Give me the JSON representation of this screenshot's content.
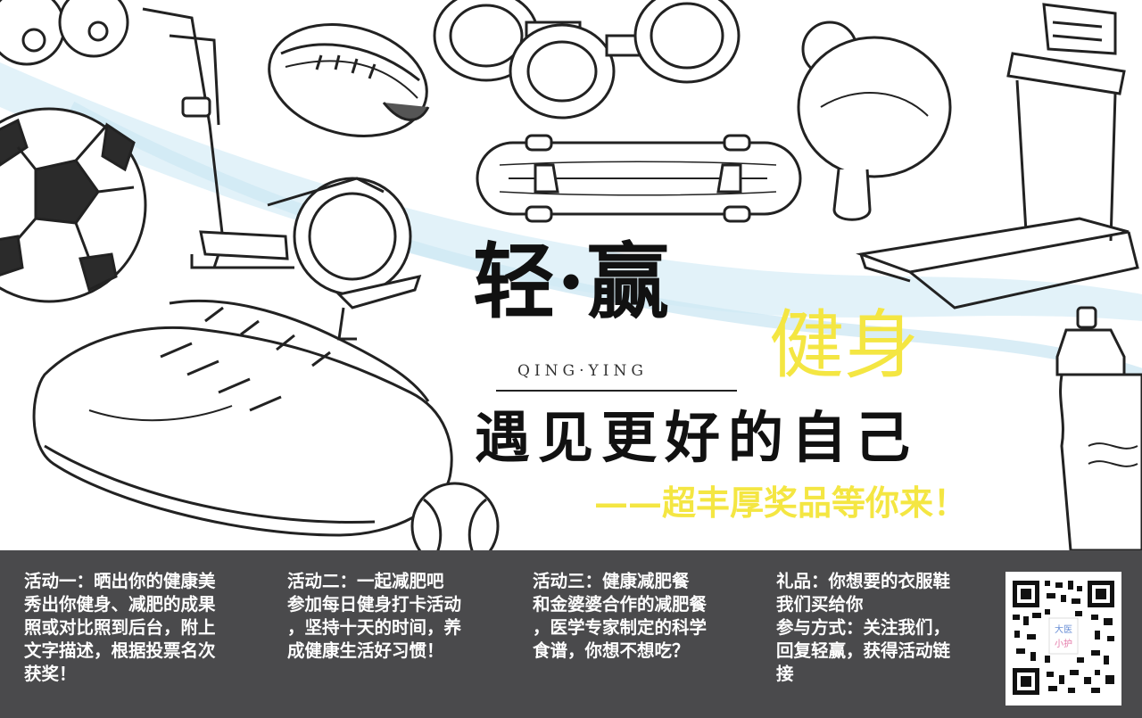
{
  "hero": {
    "title_main": "轻·赢",
    "title_pinyin": "QING·YING",
    "title_fitness": "健身",
    "title_meet": "遇见更好的自己",
    "title_prize": "——超丰厚奖品等你来！",
    "accent_color": "#f4e642"
  },
  "panel": {
    "background": "#4a4a4c",
    "activities": [
      {
        "lines": [
          "活动一：晒出你的健康美",
          "秀出你健身、减肥的成果",
          "照或对比照到后台，附上",
          "文字描述，根据投票名次",
          "获奖！"
        ]
      },
      {
        "lines": [
          "活动二：一起减肥吧",
          "参加每日健身打卡活动",
          "，坚持十天的时间，养",
          "成健康生活好习惯！"
        ]
      },
      {
        "lines": [
          "活动三：健康减肥餐",
          "和金婆婆合作的减肥餐",
          "，医学专家制定的科学",
          "食谱，你想不想吃？"
        ]
      },
      {
        "lines": [
          "礼品：你想要的衣服鞋",
          "我们买给你",
          "参与方式：关注我们，",
          "回复轻赢，获得活动链",
          "接"
        ]
      }
    ]
  },
  "qr": {
    "logo_text_1": "大医",
    "logo_text_2": "小护"
  },
  "icons": [
    "shoe-icon",
    "soccer-ball-icon",
    "football-icon",
    "dumbbell-icon",
    "skateboard-icon",
    "ping-pong-paddle-icon",
    "treadmill-icon",
    "elliptical-trainer-icon",
    "water-bottle-icon",
    "baseball-icon",
    "billiard-balls-icon",
    "qr-code-icon"
  ]
}
